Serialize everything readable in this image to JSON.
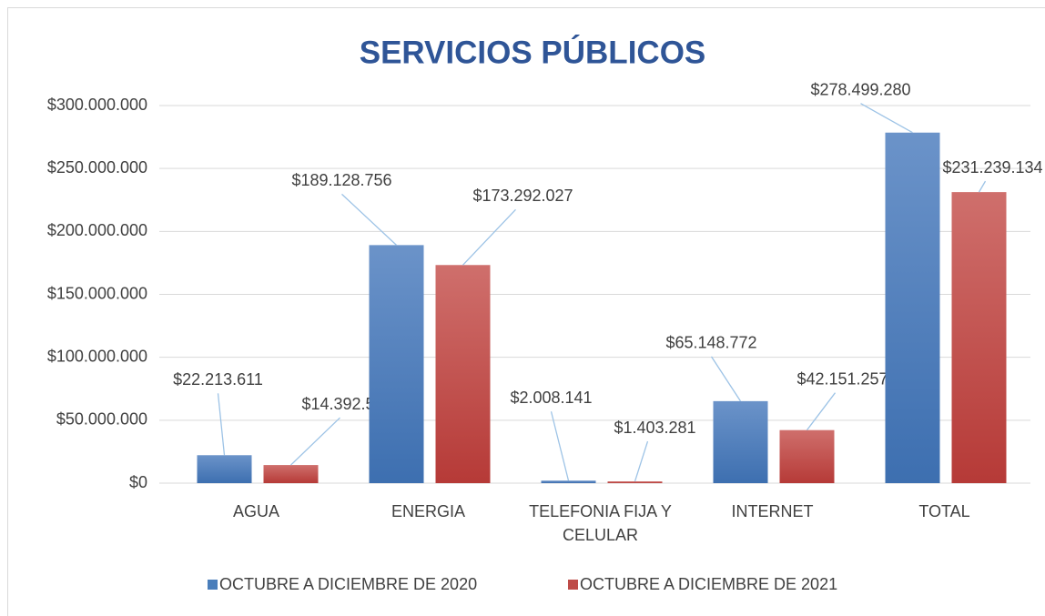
{
  "chart_data": {
    "type": "bar",
    "title": "SERVICIOS PÚBLICOS",
    "categories": [
      "AGUA",
      "ENERGIA",
      "TELEFONIA FIJA Y CELULAR",
      "INTERNET",
      "TOTAL"
    ],
    "series": [
      {
        "name": "OCTUBRE A DICIEMBRE DE 2020",
        "color": "#4a7ebb",
        "values": [
          22213611,
          189128756,
          2008141,
          65148772,
          278499280
        ],
        "value_labels": [
          "$22.213.611",
          "$189.128.756",
          "$2.008.141",
          "$65.148.772",
          "$278.499.280"
        ]
      },
      {
        "name": "OCTUBRE A DICIEMBRE DE 2021",
        "color": "#be4b48",
        "values": [
          14392569,
          173292027,
          1403281,
          42151257,
          231239134
        ],
        "value_labels": [
          "$14.392.569",
          "$173.292.027",
          "$1.403.281",
          "$42.151.257",
          "$231.239.134"
        ]
      }
    ],
    "ylim": [
      0,
      300000000
    ],
    "yticks": [
      {
        "value": 0,
        "label": "$0"
      },
      {
        "value": 50000000,
        "label": "$50.000.000"
      },
      {
        "value": 100000000,
        "label": "$100.000.000"
      },
      {
        "value": 150000000,
        "label": "$150.000.000"
      },
      {
        "value": 200000000,
        "label": "$200.000.000"
      },
      {
        "value": 250000000,
        "label": "$250.000.000"
      },
      {
        "value": 300000000,
        "label": "$300.000.000"
      }
    ],
    "grid": true,
    "legend": "bottom"
  }
}
